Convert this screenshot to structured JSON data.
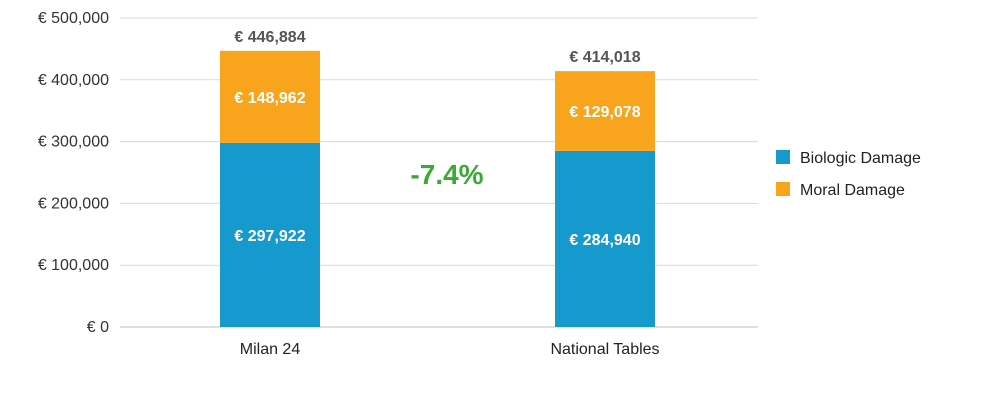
{
  "chart_data": {
    "type": "bar",
    "stacked": true,
    "categories": [
      "Milan 24",
      "National Tables"
    ],
    "series": [
      {
        "name": "Biologic Damage",
        "values": [
          297922,
          284940
        ],
        "labels": [
          "€ 297,922",
          "€ 284,940"
        ],
        "color": "#1699cc"
      },
      {
        "name": "Moral Damage",
        "values": [
          148962,
          129078
        ],
        "labels": [
          "€ 148,962",
          "€ 129,078"
        ],
        "color": "#f8a51d"
      }
    ],
    "totals": [
      446884,
      414018
    ],
    "total_labels": [
      "€ 446,884",
      "€ 414,018"
    ],
    "y_ticks": [
      0,
      100000,
      200000,
      300000,
      400000,
      500000
    ],
    "y_tick_labels": [
      "€ 0",
      "€ 100,000",
      "€ 200,000",
      "€ 300,000",
      "€ 400,000",
      "€ 500,000"
    ],
    "ylim": [
      0,
      500000
    ],
    "grid": true,
    "legend_position": "right",
    "annotation": {
      "text": "-7.4%",
      "color": "#3aaa35"
    },
    "title": "",
    "xlabel": "",
    "ylabel": ""
  }
}
